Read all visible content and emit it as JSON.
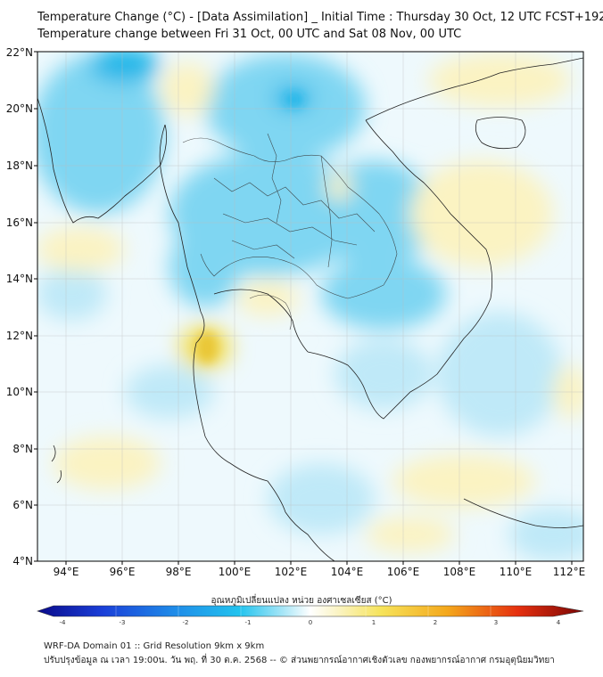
{
  "title_line1": "Temperature Change (°C) - [Data Assimilation] _ Initial Time : Thursday 30 Oct, 12 UTC FCST+192",
  "title_line2": "Temperature change between Fri 31 Oct, 00 UTC and Sat 08 Nov, 00 UTC",
  "axes": {
    "lon_ticks": [
      "94°E",
      "96°E",
      "98°E",
      "100°E",
      "102°E",
      "104°E",
      "106°E",
      "108°E",
      "110°E",
      "112°E"
    ],
    "lat_ticks": [
      "22°N",
      "20°N",
      "18°N",
      "16°N",
      "14°N",
      "12°N",
      "10°N",
      "8°N",
      "6°N",
      "4°N"
    ]
  },
  "colorbar": {
    "title": "อุณหภูมิเปลี่ยนแปลง หน่วย องศาเซลเซียส (°C)",
    "labels": [
      "-4",
      "-3",
      "-2",
      "-1",
      "0",
      "1",
      "2",
      "3",
      "4"
    ]
  },
  "footer_line1": "WRF-DA Domain 01 :: Grid Resolution 9km x 9km",
  "footer_line2": "ปรับปรุงข้อมูล ณ เวลา 19:00น. วัน พฤ. ที่ 30 ต.ค. 2568 -- © ส่วนพยากรณ์อากาศเชิงตัวเลข กองพยากรณ์อากาศ กรมอุตุนิยมวิทยา",
  "colors": {
    "cold_strong": "#1fb6e8",
    "cold": "#7fd6f2",
    "cool": "#bfe9f8",
    "neutral": "#eef9fd",
    "warm": "#fbf3c2",
    "warm_strong": "#f3e060",
    "warm_peak": "#e9c636"
  }
}
